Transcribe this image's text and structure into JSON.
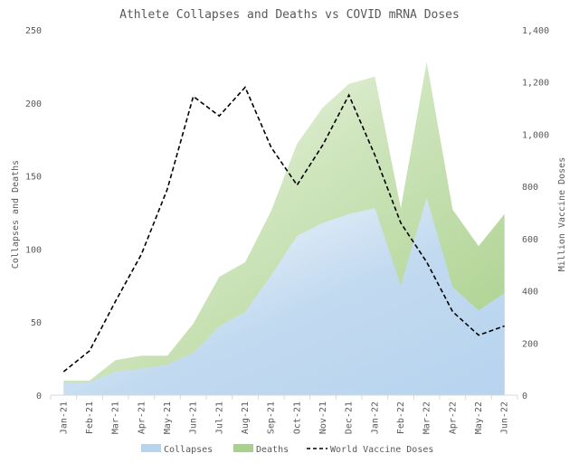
{
  "chart_data": {
    "type": "area",
    "title": "Athlete Collapses and Deaths vs COVID mRNA Doses",
    "xlabel": "",
    "ylabel": "Collapses and Deaths",
    "y2label": "Million Vaccine Doses",
    "categories": [
      "Jan-21",
      "Feb-21",
      "Mar-21",
      "Apr-21",
      "May-21",
      "Jun-21",
      "Jul-21",
      "Aug-21",
      "Sep-21",
      "Oct-21",
      "Nov-21",
      "Dec-21",
      "Jan-22",
      "Feb-22",
      "Mar-22",
      "Apr-22",
      "May-22",
      "Jun-22"
    ],
    "ylim": [
      0,
      250
    ],
    "y2lim": [
      0,
      1400
    ],
    "yticks": [
      "0",
      "50",
      "100",
      "150",
      "200",
      "250"
    ],
    "y2ticks": [
      "0",
      "200",
      "400",
      "600",
      "800",
      "1,000",
      "1,200",
      "1,400"
    ],
    "series": [
      {
        "name": "Collapses",
        "type": "area",
        "axis": "left",
        "color": "#9dc3e6",
        "values": [
          8,
          9,
          16,
          18,
          21,
          29,
          47,
          57,
          82,
          109,
          118,
          124,
          128,
          75,
          135,
          74,
          58,
          70
        ]
      },
      {
        "name": "Deaths",
        "type": "stacked-area",
        "axis": "left",
        "color": "#a9d18e",
        "values": [
          2,
          1,
          8,
          9,
          6,
          20,
          34,
          34,
          44,
          63,
          79,
          89,
          90,
          53,
          93,
          53,
          44,
          54
        ]
      },
      {
        "name": "World Vaccine Doses",
        "type": "line",
        "axis": "right",
        "color": "#000000",
        "values": [
          90,
          170,
          360,
          540,
          790,
          1145,
          1070,
          1180,
          950,
          805,
          960,
          1150,
          920,
          660,
          510,
          320,
          230,
          265
        ]
      }
    ],
    "legend": [
      "Collapses",
      "Deaths",
      "World Vaccine Doses"
    ],
    "legend_position": "bottom",
    "grid": false
  }
}
